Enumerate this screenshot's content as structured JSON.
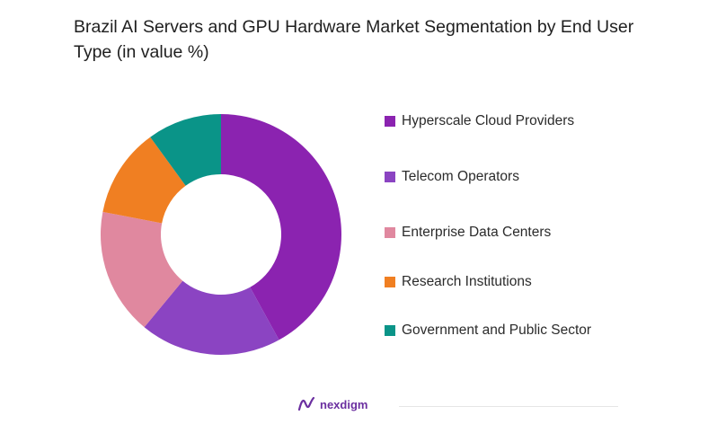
{
  "chart_data": {
    "type": "pie",
    "title": "Brazil AI Servers and GPU Hardware Market Segmentation by End User Type (in value %)",
    "donut": true,
    "categories": [
      "Hyperscale Cloud Providers",
      "Telecom Operators",
      "Enterprise Data Centers",
      "Research Institutions",
      "Government and Public Sector"
    ],
    "values": [
      42,
      19,
      17,
      12,
      10
    ],
    "colors": [
      "#8b23b0",
      "#8b44c2",
      "#e0889f",
      "#f07f22",
      "#0a9488"
    ],
    "legend_position": "right"
  },
  "branding": {
    "logo_text": "nexdigm",
    "logo_color": "#6b2fa0"
  }
}
